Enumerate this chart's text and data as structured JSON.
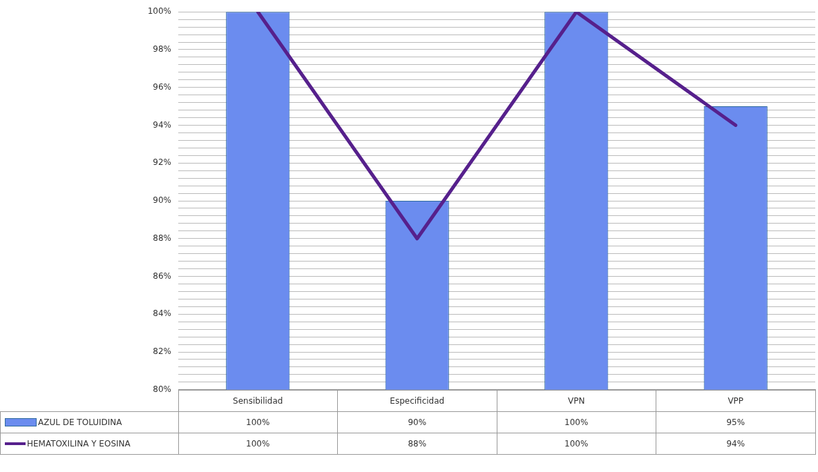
{
  "chart_data": {
    "type": "bar",
    "categories": [
      "Sensibilidad",
      "Especificidad",
      "VPN",
      "VPP"
    ],
    "series": [
      {
        "name": "AZUL DE TOLUIDINA",
        "color": "#6b8cef",
        "values": [
          100,
          90,
          100,
          95
        ],
        "value_labels": [
          "100%",
          "90%",
          "100%",
          "95%"
        ]
      },
      {
        "name": "HEMATOXILINA Y EOSINA",
        "type": "line",
        "color": "#56208c",
        "values": [
          100,
          88,
          100,
          94
        ],
        "value_labels": [
          "100%",
          "88%",
          "100%",
          "94%"
        ]
      }
    ],
    "ylim": [
      80,
      100
    ],
    "yticks": [
      {
        "value": 80,
        "label": "80%"
      },
      {
        "value": 80.4,
        "label": null
      },
      {
        "value": 80.8,
        "label": null
      },
      {
        "value": 81.2,
        "label": null
      },
      {
        "value": 81.6,
        "label": null
      },
      {
        "value": 82,
        "label": "82%"
      },
      {
        "value": 82.4,
        "label": null
      },
      {
        "value": 82.8,
        "label": null
      },
      {
        "value": 83.2,
        "label": null
      },
      {
        "value": 83.6,
        "label": null
      },
      {
        "value": 84,
        "label": "84%"
      },
      {
        "value": 84.4,
        "label": null
      },
      {
        "value": 84.8,
        "label": null
      },
      {
        "value": 85.2,
        "label": null
      },
      {
        "value": 85.6,
        "label": null
      },
      {
        "value": 86,
        "label": "86%"
      },
      {
        "value": 86.4,
        "label": null
      },
      {
        "value": 86.8,
        "label": null
      },
      {
        "value": 87.2,
        "label": null
      },
      {
        "value": 87.6,
        "label": null
      },
      {
        "value": 88,
        "label": "88%"
      },
      {
        "value": 88.4,
        "label": null
      },
      {
        "value": 88.8,
        "label": null
      },
      {
        "value": 89.2,
        "label": null
      },
      {
        "value": 89.6,
        "label": null
      },
      {
        "value": 90,
        "label": "90%"
      },
      {
        "value": 90.4,
        "label": null
      },
      {
        "value": 90.8,
        "label": null
      },
      {
        "value": 91.2,
        "label": null
      },
      {
        "value": 91.6,
        "label": null
      },
      {
        "value": 92,
        "label": "92%"
      },
      {
        "value": 92.4,
        "label": null
      },
      {
        "value": 92.8,
        "label": null
      },
      {
        "value": 93.2,
        "label": null
      },
      {
        "value": 93.6,
        "label": null
      },
      {
        "value": 94,
        "label": "94%"
      },
      {
        "value": 94.4,
        "label": null
      },
      {
        "value": 94.8,
        "label": null
      },
      {
        "value": 95.2,
        "label": null
      },
      {
        "value": 95.6,
        "label": null
      },
      {
        "value": 96,
        "label": "96%"
      },
      {
        "value": 96.4,
        "label": null
      },
      {
        "value": 96.8,
        "label": null
      },
      {
        "value": 97.2,
        "label": null
      },
      {
        "value": 97.6,
        "label": null
      },
      {
        "value": 98,
        "label": "98%"
      },
      {
        "value": 98.4,
        "label": null
      },
      {
        "value": 98.8,
        "label": null
      },
      {
        "value": 99.2,
        "label": null
      },
      {
        "value": 99.6,
        "label": null
      },
      {
        "value": 100,
        "label": "100%"
      }
    ],
    "grid": true,
    "legend": "bottom"
  }
}
